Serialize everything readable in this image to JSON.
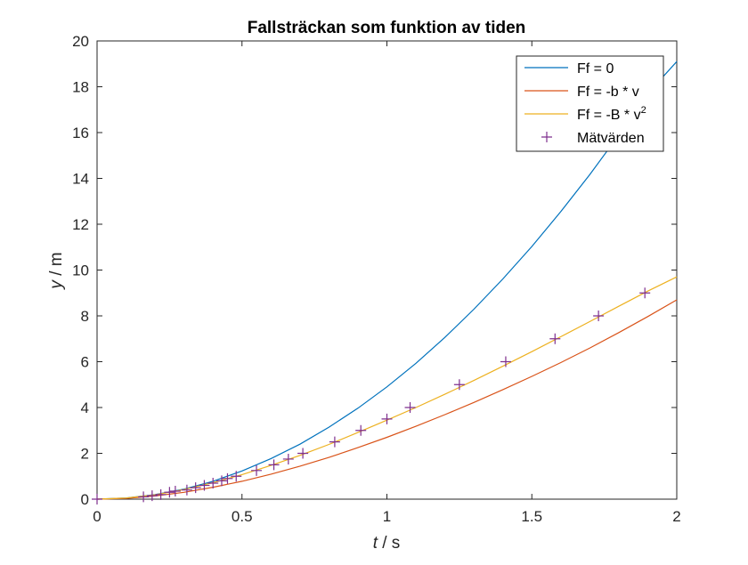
{
  "chart_data": {
    "type": "line",
    "title": "Fallsträckan som funktion av tiden",
    "xlabel": {
      "var": "t",
      "unit": " / s"
    },
    "ylabel": {
      "var": "y",
      "unit": " / m"
    },
    "xlim": [
      0,
      2
    ],
    "ylim": [
      0,
      20
    ],
    "xticks": [
      0,
      0.5,
      1,
      1.5,
      2
    ],
    "xtick_labels": [
      "0",
      "0.5",
      "1",
      "1.5",
      "2"
    ],
    "yticks": [
      0,
      2,
      4,
      6,
      8,
      10,
      12,
      14,
      16,
      18,
      20
    ],
    "ytick_labels": [
      "0",
      "2",
      "4",
      "6",
      "8",
      "10",
      "12",
      "14",
      "16",
      "18",
      "20"
    ],
    "grid": false,
    "legend_position": "top-right",
    "series": [
      {
        "name": "Ff = 0",
        "style": "line",
        "color": "#0072BD",
        "x": [
          0,
          0.1,
          0.2,
          0.3,
          0.4,
          0.5,
          0.6,
          0.7,
          0.8,
          0.9,
          1.0,
          1.1,
          1.2,
          1.3,
          1.4,
          1.5,
          1.6,
          1.7,
          1.8,
          1.9,
          2.0
        ],
        "y": [
          0,
          0.05,
          0.2,
          0.44,
          0.78,
          1.23,
          1.77,
          2.4,
          3.14,
          3.97,
          4.9,
          5.93,
          7.06,
          8.29,
          9.61,
          11.03,
          12.55,
          14.17,
          15.89,
          17.7,
          19.1
        ]
      },
      {
        "name": "Ff = -b * v",
        "style": "line",
        "color": "#D95319",
        "x": [
          0,
          0.1,
          0.2,
          0.3,
          0.4,
          0.5,
          0.6,
          0.7,
          0.8,
          0.9,
          1.0,
          1.1,
          1.2,
          1.3,
          1.4,
          1.5,
          1.6,
          1.7,
          1.8,
          1.9,
          2.0
        ],
        "y": [
          0,
          0.035,
          0.14,
          0.3,
          0.52,
          0.78,
          1.09,
          1.44,
          1.82,
          2.25,
          2.7,
          3.18,
          3.69,
          4.22,
          4.78,
          5.36,
          5.96,
          6.6,
          7.27,
          7.97,
          8.7
        ]
      },
      {
        "name": "Ff = -B * v",
        "name_superscript": "2",
        "style": "line",
        "color": "#EDB120",
        "x": [
          0,
          0.1,
          0.2,
          0.3,
          0.4,
          0.5,
          0.6,
          0.7,
          0.8,
          0.9,
          1.0,
          1.1,
          1.2,
          1.3,
          1.4,
          1.5,
          1.6,
          1.7,
          1.8,
          1.9,
          2.0
        ],
        "y": [
          0,
          0.05,
          0.19,
          0.42,
          0.72,
          1.07,
          1.47,
          1.91,
          2.39,
          2.91,
          3.45,
          4.0,
          4.58,
          5.18,
          5.8,
          6.44,
          7.09,
          7.75,
          8.42,
          9.08,
          9.7
        ]
      },
      {
        "name": "Mätvärden",
        "style": "markers",
        "marker": "+",
        "color": "#7E2F8E",
        "x": [
          0,
          0.16,
          0.19,
          0.22,
          0.25,
          0.27,
          0.31,
          0.34,
          0.37,
          0.4,
          0.43,
          0.45,
          0.48,
          0.55,
          0.61,
          0.66,
          0.71,
          0.82,
          0.91,
          1.0,
          1.08,
          1.25,
          1.41,
          1.58,
          1.73,
          1.89
        ],
        "y": [
          0,
          0.1,
          0.15,
          0.2,
          0.3,
          0.35,
          0.4,
          0.5,
          0.6,
          0.7,
          0.8,
          0.9,
          1.0,
          1.25,
          1.5,
          1.75,
          2.0,
          2.5,
          3.0,
          3.5,
          4.0,
          5.0,
          6.0,
          7.0,
          8.0,
          9.0
        ]
      }
    ]
  }
}
